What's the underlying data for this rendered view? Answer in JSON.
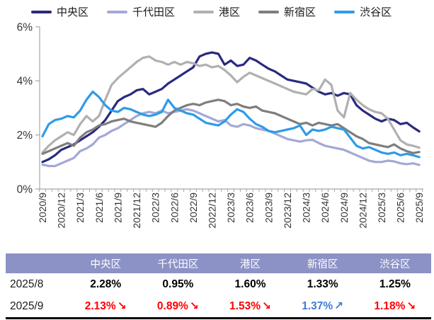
{
  "chart_data": {
    "type": "line",
    "title": "",
    "x_start": "2020/9",
    "x_end": "2025/9",
    "x_interval": "monthly",
    "x_tick_labels": [
      "2020/9",
      "2020/12",
      "2021/3",
      "2021/6",
      "2021/9",
      "2021/12",
      "2022/3",
      "2022/6",
      "2022/9",
      "2022/12",
      "2023/3",
      "2023/6",
      "2023/9",
      "2023/12",
      "2024/3",
      "2024/6",
      "2024/9",
      "2024/12",
      "2025/3",
      "2025/6",
      "2025/9"
    ],
    "ylim": [
      0,
      6
    ],
    "y_tick_labels": [
      "0%",
      "2%",
      "4%",
      "6%"
    ],
    "grid": false,
    "legend_position": "top",
    "axis_color": "#a6a6a6",
    "tick_label_color": "#333333",
    "series": [
      {
        "name": "中央区",
        "slug": "chuo",
        "color": "#292A80",
        "values": [
          1.0,
          1.1,
          1.25,
          1.45,
          1.55,
          1.65,
          1.8,
          1.95,
          2.1,
          2.3,
          2.55,
          2.9,
          3.25,
          3.4,
          3.5,
          3.65,
          3.7,
          3.5,
          3.6,
          3.7,
          3.9,
          4.05,
          4.2,
          4.35,
          4.5,
          4.9,
          5.0,
          5.05,
          5.0,
          4.6,
          4.75,
          4.55,
          4.6,
          4.85,
          4.75,
          4.6,
          4.45,
          4.35,
          4.2,
          4.05,
          4.0,
          3.95,
          3.9,
          3.75,
          3.6,
          3.5,
          3.55,
          3.45,
          3.55,
          3.5,
          3.1,
          2.9,
          2.75,
          2.6,
          2.5,
          2.6,
          2.55,
          2.4,
          2.45,
          2.28,
          2.13
        ]
      },
      {
        "name": "千代田区",
        "slug": "chiyoda",
        "color": "#A3A8D6",
        "values": [
          0.9,
          0.85,
          0.85,
          0.95,
          1.05,
          1.15,
          1.4,
          1.5,
          1.65,
          1.9,
          2.0,
          2.15,
          2.25,
          2.4,
          2.55,
          2.7,
          2.8,
          2.85,
          2.8,
          2.9,
          2.8,
          2.85,
          2.9,
          2.95,
          2.9,
          2.8,
          2.7,
          2.6,
          2.5,
          2.55,
          2.35,
          2.3,
          2.4,
          2.35,
          2.25,
          2.2,
          2.15,
          2.05,
          1.95,
          1.85,
          1.8,
          1.75,
          1.8,
          1.82,
          1.7,
          1.6,
          1.55,
          1.5,
          1.45,
          1.35,
          1.25,
          1.15,
          1.05,
          1.0,
          1.0,
          1.05,
          1.02,
          0.95,
          0.92,
          0.95,
          0.89
        ]
      },
      {
        "name": "港区",
        "slug": "minato",
        "color": "#B0B0B0",
        "values": [
          1.35,
          1.6,
          1.8,
          1.95,
          2.1,
          2.0,
          2.4,
          2.7,
          2.5,
          2.7,
          3.3,
          3.85,
          4.1,
          4.3,
          4.5,
          4.7,
          4.85,
          4.9,
          4.75,
          4.7,
          4.6,
          4.7,
          4.6,
          4.7,
          4.65,
          4.55,
          4.6,
          4.5,
          4.55,
          4.4,
          4.2,
          3.95,
          4.15,
          4.3,
          4.2,
          4.1,
          4.0,
          3.9,
          3.8,
          3.7,
          3.6,
          3.55,
          3.5,
          3.7,
          3.65,
          4.05,
          3.85,
          2.9,
          2.65,
          3.55,
          3.3,
          3.1,
          2.95,
          2.85,
          2.8,
          2.6,
          2.2,
          1.8,
          1.65,
          1.6,
          1.53
        ]
      },
      {
        "name": "新宿区",
        "slug": "shinjuku",
        "color": "#7E7E7E",
        "values": [
          1.3,
          1.4,
          1.5,
          1.6,
          1.7,
          1.6,
          1.9,
          2.1,
          2.2,
          2.35,
          2.4,
          2.5,
          2.55,
          2.6,
          2.5,
          2.45,
          2.4,
          2.35,
          2.3,
          2.45,
          2.7,
          2.9,
          3.0,
          3.1,
          3.15,
          3.1,
          3.2,
          3.25,
          3.3,
          3.25,
          3.1,
          3.15,
          3.05,
          3.0,
          3.05,
          2.9,
          2.85,
          2.8,
          2.7,
          2.6,
          2.5,
          2.4,
          2.45,
          2.35,
          2.45,
          2.4,
          2.35,
          2.4,
          2.25,
          2.1,
          1.95,
          1.85,
          1.7,
          1.65,
          1.6,
          1.55,
          1.65,
          1.5,
          1.4,
          1.33,
          1.37
        ]
      },
      {
        "name": "渋谷区",
        "slug": "shibuya",
        "color": "#2E9BE8",
        "values": [
          1.95,
          2.4,
          2.55,
          2.6,
          2.7,
          2.65,
          2.9,
          3.3,
          3.6,
          3.4,
          3.1,
          2.9,
          2.85,
          3.0,
          2.95,
          2.85,
          2.75,
          2.7,
          2.75,
          2.85,
          3.3,
          3.0,
          2.9,
          2.8,
          2.75,
          2.6,
          2.45,
          2.4,
          2.35,
          2.5,
          2.75,
          2.95,
          2.85,
          2.6,
          2.4,
          2.3,
          2.15,
          2.1,
          2.15,
          2.2,
          2.25,
          2.35,
          2.0,
          2.2,
          2.15,
          2.2,
          2.3,
          2.25,
          2.2,
          1.9,
          1.6,
          1.5,
          1.55,
          1.45,
          1.35,
          1.3,
          1.35,
          1.25,
          1.3,
          1.25,
          1.18
        ]
      }
    ]
  },
  "table": {
    "header_bg": "#8C92C6",
    "columns": [
      "",
      "中央区",
      "千代田区",
      "港区",
      "新宿区",
      "渋谷区"
    ],
    "rows": [
      {
        "label": "2025/8",
        "cells": [
          {
            "value": "2.28%",
            "arrow": "",
            "dir": "flat"
          },
          {
            "value": "0.95%",
            "arrow": "",
            "dir": "flat"
          },
          {
            "value": "1.60%",
            "arrow": "",
            "dir": "flat"
          },
          {
            "value": "1.33%",
            "arrow": "",
            "dir": "flat"
          },
          {
            "value": "1.25%",
            "arrow": "",
            "dir": "flat"
          }
        ]
      },
      {
        "label": "2025/9",
        "cells": [
          {
            "value": "2.13%",
            "arrow": "↘",
            "dir": "down"
          },
          {
            "value": "0.89%",
            "arrow": "↘",
            "dir": "down"
          },
          {
            "value": "1.53%",
            "arrow": "↘",
            "dir": "down"
          },
          {
            "value": "1.37%",
            "arrow": "↗",
            "dir": "up"
          },
          {
            "value": "1.18%",
            "arrow": "↘",
            "dir": "down"
          }
        ]
      }
    ],
    "colors": {
      "down": "#FF0000",
      "up": "#3D7CD8",
      "flat": "#000000"
    }
  }
}
